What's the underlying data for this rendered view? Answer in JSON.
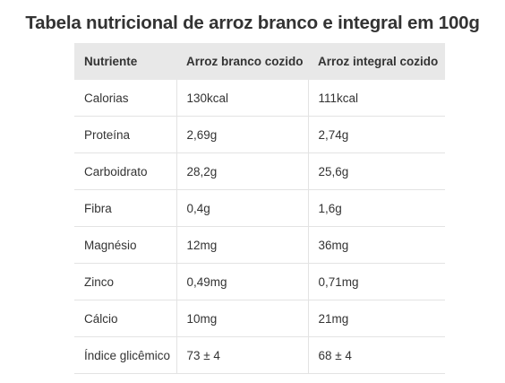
{
  "title": "Tabela nutricional de arroz branco e integral em 100g",
  "table": {
    "headers": [
      "Nutriente",
      "Arroz branco cozido",
      "Arroz integral cozido"
    ],
    "rows": [
      [
        "Calorias",
        "130kcal",
        "111kcal"
      ],
      [
        "Proteína",
        "2,69g",
        "2,74g"
      ],
      [
        "Carboidrato",
        "28,2g",
        "25,6g"
      ],
      [
        "Fibra",
        "0,4g",
        "1,6g"
      ],
      [
        "Magnésio",
        "12mg",
        "36mg"
      ],
      [
        "Zinco",
        "0,49mg",
        "0,71mg"
      ],
      [
        "Cálcio",
        "10mg",
        "21mg"
      ],
      [
        "Índice glicêmico",
        "73 ± 4",
        "68 ± 4"
      ]
    ]
  }
}
